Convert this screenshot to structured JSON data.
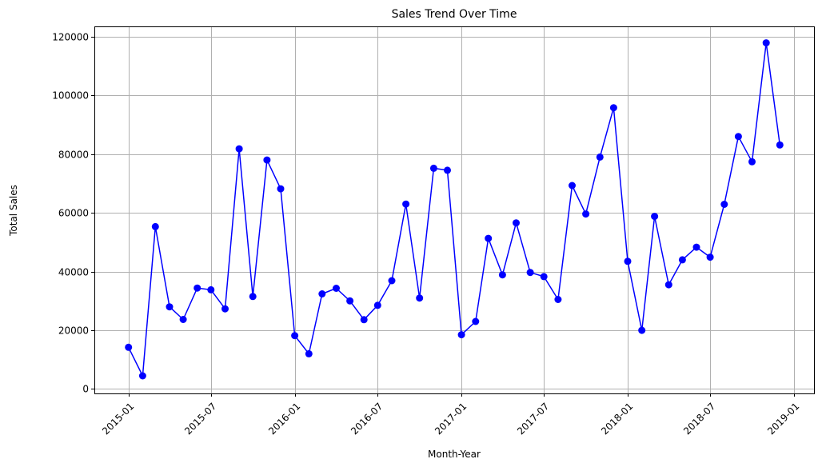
{
  "chart_data": {
    "type": "line",
    "title": "Sales Trend Over Time",
    "xlabel": "Month-Year",
    "ylabel": "Total Sales",
    "x_tick_labels": [
      "2015-01",
      "2015-07",
      "2016-01",
      "2016-07",
      "2017-01",
      "2017-07",
      "2018-01",
      "2018-07",
      "2019-01"
    ],
    "y_tick_labels": [
      "0",
      "20000",
      "40000",
      "60000",
      "80000",
      "100000",
      "120000"
    ],
    "y_ticks": [
      0,
      20000,
      40000,
      60000,
      80000,
      100000,
      120000
    ],
    "x_range": [
      "2014-10-18",
      "2019-02-14"
    ],
    "ylim": [
      -1500,
      123500
    ],
    "grid": true,
    "line_color": "#0000ff",
    "marker_color": "#0000ff",
    "series": [
      {
        "x": [
          "2015-01-01",
          "2015-02-01",
          "2015-03-01",
          "2015-04-01",
          "2015-05-01",
          "2015-06-01",
          "2015-07-01",
          "2015-08-01",
          "2015-09-01",
          "2015-10-01",
          "2015-11-01",
          "2015-12-01",
          "2016-01-01",
          "2016-02-01",
          "2016-03-01",
          "2016-04-01",
          "2016-05-01",
          "2016-06-01",
          "2016-07-01",
          "2016-08-01",
          "2016-09-01",
          "2016-10-01",
          "2016-11-01",
          "2016-12-01",
          "2017-01-01",
          "2017-02-01",
          "2017-03-01",
          "2017-04-01",
          "2017-05-01",
          "2017-06-01",
          "2017-07-01",
          "2017-08-01",
          "2017-09-01",
          "2017-10-01",
          "2017-11-01",
          "2017-12-01",
          "2018-01-01",
          "2018-02-01",
          "2018-03-01",
          "2018-04-01",
          "2018-05-01",
          "2018-06-01",
          "2018-07-01",
          "2018-08-01",
          "2018-09-01",
          "2018-10-01",
          "2018-11-01",
          "2018-12-01"
        ],
        "values": [
          14200,
          4500,
          55300,
          28000,
          23700,
          34400,
          33800,
          27300,
          81800,
          31500,
          78000,
          68200,
          18200,
          12000,
          32400,
          34300,
          30000,
          23600,
          28500,
          36900,
          63000,
          31000,
          75200,
          74500,
          18500,
          23000,
          51300,
          38900,
          56600,
          39700,
          38300,
          30500,
          69300,
          59600,
          79000,
          95800,
          43500,
          20000,
          58800,
          35500,
          44000,
          48300,
          44900,
          62900,
          86000,
          77400,
          117900,
          83100
        ]
      }
    ]
  }
}
